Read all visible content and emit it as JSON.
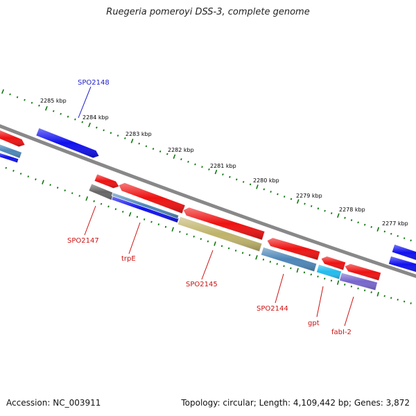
{
  "title": "Ruegeria pomeroyi DSS-3, complete genome",
  "footer": {
    "accession": "Accession: NC_003911",
    "summary": "Topology: circular; Length: 4,109,442 bp; Genes: 3,872"
  },
  "colors": {
    "backbone": "#888888",
    "tick": "#117711",
    "label_blue": "#1b1bcc",
    "label_red": "#cc1111",
    "red": "#ee1111",
    "blue": "#1010ee",
    "steel": "#4d86b8",
    "gray": "#666666",
    "khaki": "#bfb36a",
    "cyan": "#22bbee",
    "violet": "#7766cc"
  },
  "kbp_labels": [
    "2285 kbp",
    "2284 kbp",
    "2283 kbp",
    "2282 kbp",
    "2281 kbp",
    "2280 kbp",
    "2279 kbp",
    "2278 kbp",
    "2277 kbp"
  ],
  "gene_labels": [
    {
      "text": "SPO2148",
      "color": "blue"
    },
    {
      "text": "SPO2147",
      "color": "red"
    },
    {
      "text": "trpE",
      "color": "red"
    },
    {
      "text": "SPO2145",
      "color": "red"
    },
    {
      "text": "SPO2144",
      "color": "red"
    },
    {
      "text": "gpt",
      "color": "red"
    },
    {
      "text": "fabI-2",
      "color": "red"
    }
  ]
}
